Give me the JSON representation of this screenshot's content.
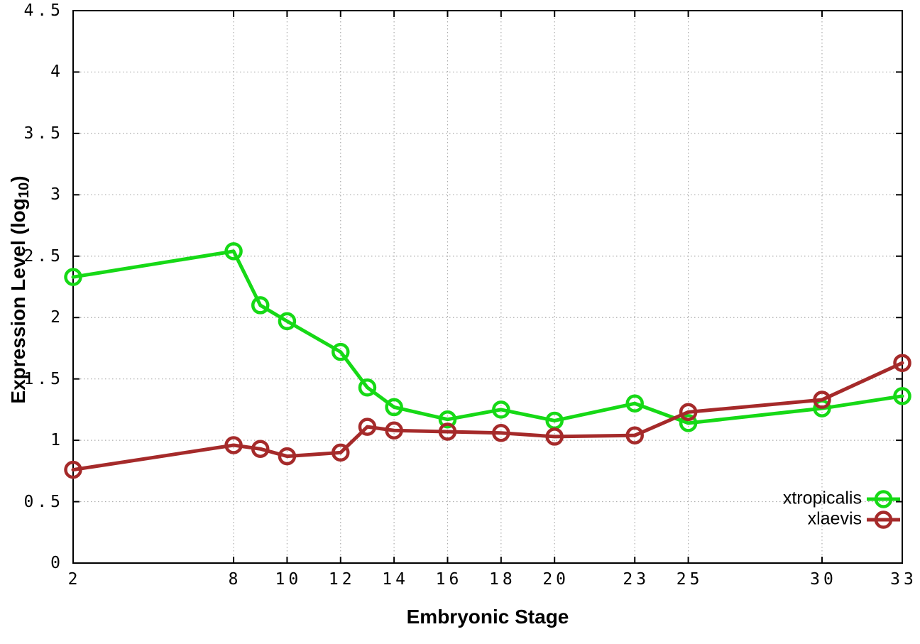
{
  "figure": {
    "background": "#ffffff",
    "axis_color": "#000000",
    "grid_color": "#aaaaaa"
  },
  "chart_data": {
    "type": "line",
    "title": "",
    "xlabel": "Embryonic Stage",
    "ylabel": "Expression Level (log10)",
    "ylabel_parts": {
      "text": "Expression Level (log",
      "sub": "10",
      "close": ")"
    },
    "xlim": [
      2,
      33
    ],
    "ylim": [
      0,
      4.5
    ],
    "x_ticks": [
      2,
      8,
      10,
      12,
      14,
      16,
      18,
      20,
      23,
      25,
      30,
      33
    ],
    "x_tick_labels": [
      "2",
      "8",
      "10",
      "12",
      "14",
      "16",
      "18",
      "20",
      "23",
      "25",
      "30",
      "33"
    ],
    "y_ticks": [
      0,
      0.5,
      1,
      1.5,
      2,
      2.5,
      3,
      3.5,
      4,
      4.5
    ],
    "y_tick_labels": [
      "0",
      "0.5",
      "1",
      "1.5",
      "2",
      "2.5",
      "3",
      "3.5",
      "4",
      "4.5"
    ],
    "grid": true,
    "grid_style": "dotted",
    "legend_position": "bottom-right-inside",
    "point_style": "open-circle",
    "x": [
      2,
      8,
      9,
      10,
      12,
      13,
      14,
      16,
      18,
      20,
      23,
      25,
      30,
      33
    ],
    "series": [
      {
        "name": "xtropicalis",
        "color": "#16d916",
        "values": [
          2.33,
          2.54,
          2.1,
          1.97,
          1.72,
          1.43,
          1.27,
          1.17,
          1.25,
          1.16,
          1.3,
          1.14,
          1.26,
          1.36
        ]
      },
      {
        "name": "xlaevis",
        "color": "#a52a2a",
        "values": [
          0.76,
          0.96,
          0.93,
          0.87,
          0.9,
          1.11,
          1.08,
          1.07,
          1.06,
          1.03,
          1.04,
          1.23,
          1.33,
          1.63
        ]
      }
    ]
  }
}
